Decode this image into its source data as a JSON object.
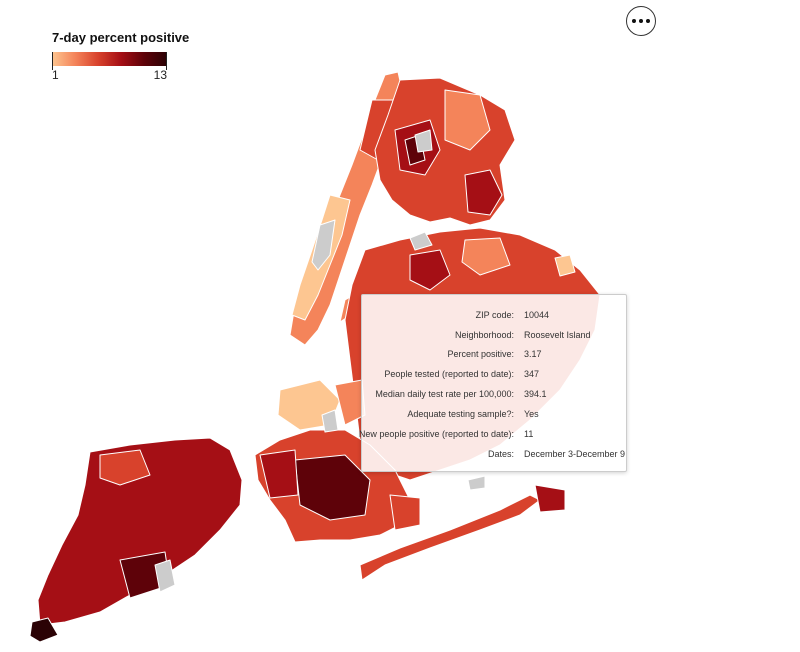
{
  "legend": {
    "title": "7-day percent positive",
    "min": "1",
    "max": "13"
  },
  "colors": {
    "scale": [
      "#fdc691",
      "#f4845a",
      "#d8422c",
      "#a50f15",
      "#5e0209",
      "#2b0205"
    ],
    "no_data": "#cccccc",
    "border": "#ffffff"
  },
  "more_button": {
    "icon": "more-horizontal-icon"
  },
  "tooltip": {
    "rows": [
      {
        "label": "ZIP code:",
        "value": "10044"
      },
      {
        "label": "Neighborhood:",
        "value": "Roosevelt Island"
      },
      {
        "label": "Percent positive:",
        "value": "3.17"
      },
      {
        "label": "People tested (reported to date):",
        "value": "347"
      },
      {
        "label": "Median daily test rate per 100,000:",
        "value": "394.1"
      },
      {
        "label": "Adequate testing sample?:",
        "value": "Yes"
      },
      {
        "label": "New people positive (reported to date):",
        "value": "11"
      },
      {
        "label": "Dates:",
        "value": "December 3-December 9"
      }
    ]
  }
}
